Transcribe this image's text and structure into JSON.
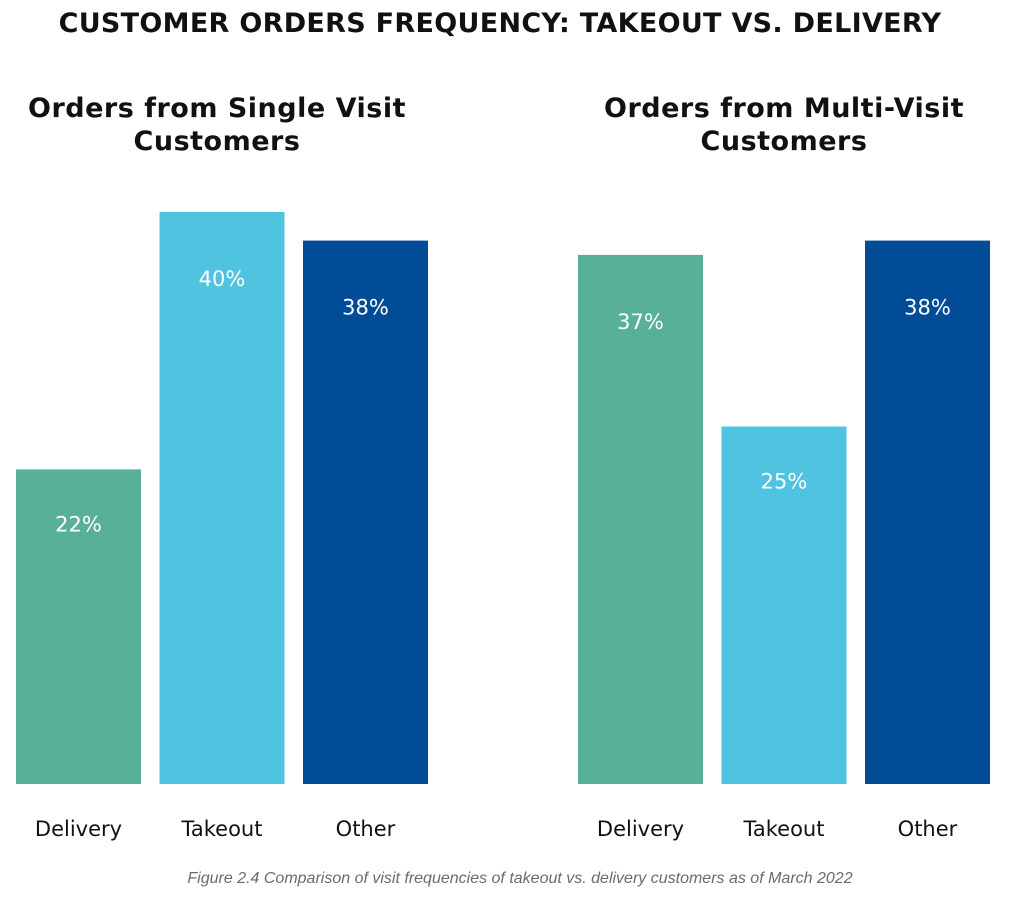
{
  "title": "CUSTOMER ORDERS FREQUENCY: TAKEOUT VS. DELIVERY",
  "caption": "Figure 2.4 Comparison of visit frequencies of takeout vs. delivery customers as of March 2022",
  "chart_data": [
    {
      "type": "bar",
      "title": "Orders from Single Visit Customers",
      "categories": [
        "Delivery",
        "Takeout",
        "Other"
      ],
      "values": [
        22,
        40,
        38
      ],
      "value_labels": [
        "22%",
        "40%",
        "38%"
      ],
      "colors": [
        "#58b197",
        "#50c3e0",
        "#004c97"
      ]
    },
    {
      "type": "bar",
      "title": "Orders from Multi-Visit Customers",
      "categories": [
        "Delivery",
        "Takeout",
        "Other"
      ],
      "values": [
        37,
        25,
        38
      ],
      "value_labels": [
        "37%",
        "25%",
        "38%"
      ],
      "colors": [
        "#58b197",
        "#50c3e0",
        "#004c97"
      ]
    }
  ]
}
